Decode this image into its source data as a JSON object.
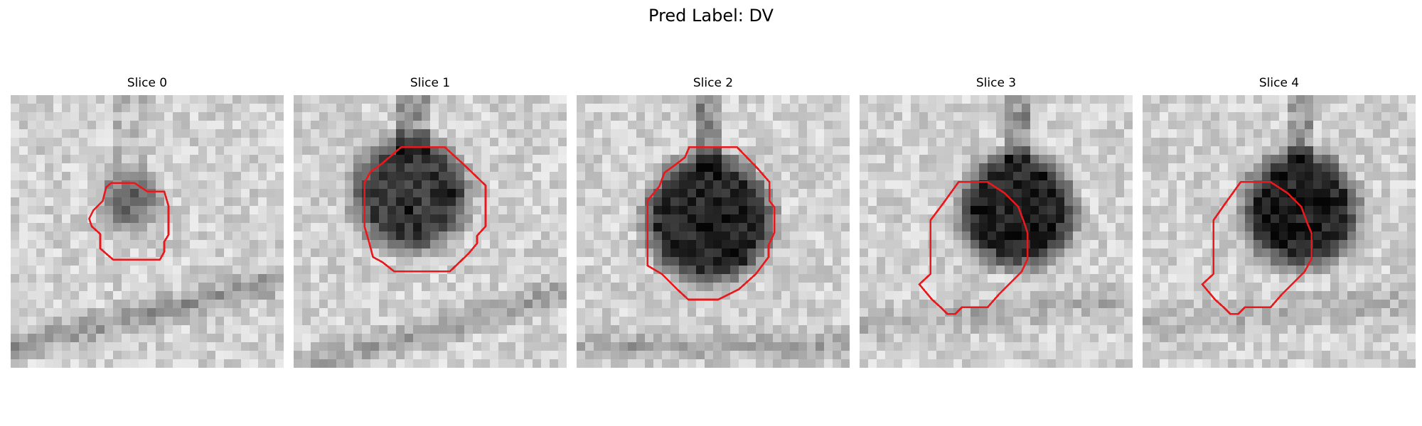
{
  "figure": {
    "title": "Pred Label: DV"
  },
  "panels": [
    {
      "title": "Slice 0"
    },
    {
      "title": "Slice 1"
    },
    {
      "title": "Slice 2"
    },
    {
      "title": "Slice 3"
    },
    {
      "title": "Slice 4"
    }
  ],
  "colors": {
    "contour": "#e8191c",
    "background": "#ffffff"
  },
  "images": {
    "colormap": "grayscale",
    "grid": "32x32 pixelated patches"
  }
}
